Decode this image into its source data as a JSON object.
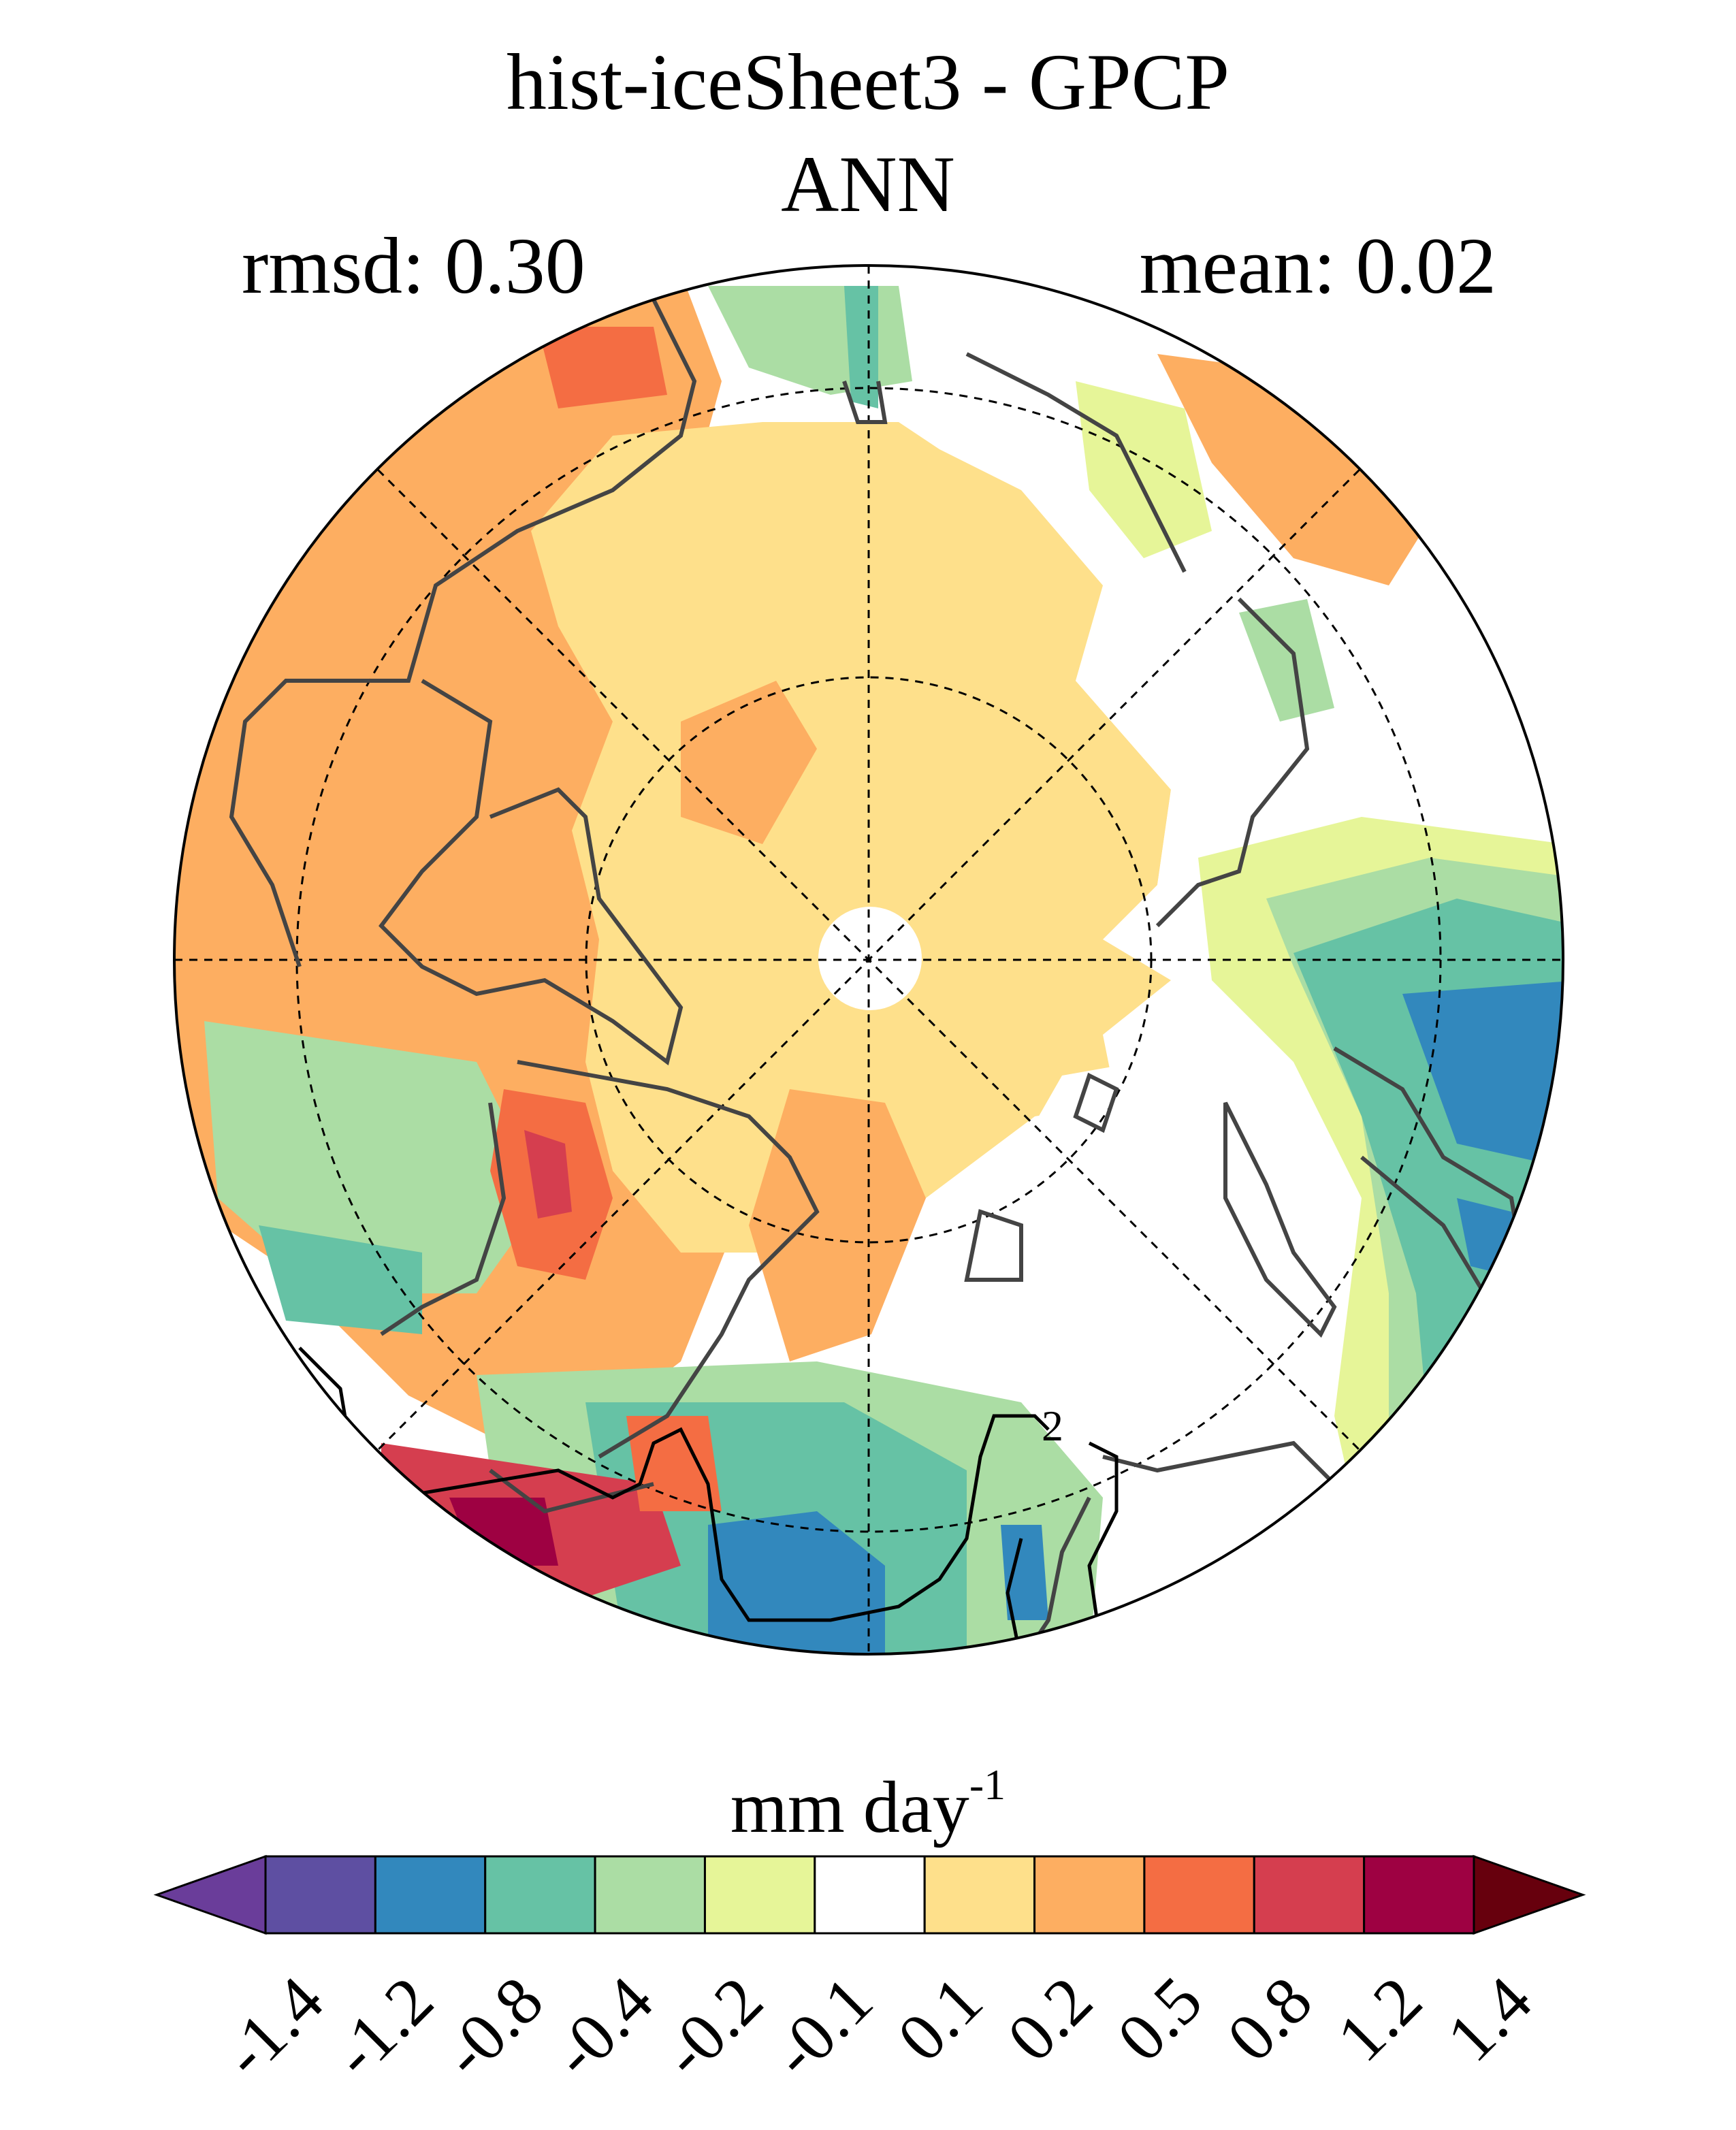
{
  "title": "hist-iceSheet3 - GPCP",
  "subtitle": "ANN",
  "stats": {
    "rmsd": "rmsd: 0.30",
    "mean": "mean: 0.02"
  },
  "contour_label": "2",
  "colorbar": {
    "units_base": "mm day",
    "units_exp": "-1",
    "ticks": [
      "-1.4",
      "-1.2",
      "-0.8",
      "-0.4",
      "-0.2",
      "-0.1",
      "0.1",
      "0.2",
      "0.5",
      "0.8",
      "1.2",
      "1.4"
    ],
    "colors": [
      "#5e4fa2",
      "#3288bd",
      "#66c2a5",
      "#abdda4",
      "#e6f598",
      "#ffffff",
      "#fee08b",
      "#fdae61",
      "#f46d43",
      "#d53e4f",
      "#9e0142"
    ],
    "under_color": "#6a3d9a",
    "over_color": "#67000d"
  },
  "palette": {
    "pos1": "#fee08b",
    "pos2": "#fdae61",
    "pos3": "#f46d43",
    "pos4": "#d53e4f",
    "pos5": "#9e0142",
    "neg1": "#e6f598",
    "neg2": "#abdda4",
    "neg3": "#66c2a5",
    "neg4": "#3288bd",
    "neg5": "#5e4fa2"
  }
}
